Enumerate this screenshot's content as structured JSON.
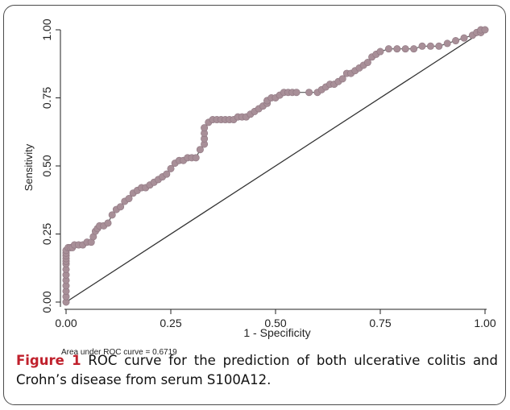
{
  "chart_data": {
    "type": "line",
    "xlabel": "1 - Specificity",
    "ylabel": "Sensitivity",
    "xlim": [
      0,
      1
    ],
    "ylim": [
      0,
      1
    ],
    "x_ticks": [
      "0.00",
      "0.25",
      "0.50",
      "0.75",
      "1.00"
    ],
    "y_ticks": [
      "0.00",
      "0.25",
      "0.50",
      "0.75",
      "1.00"
    ],
    "grid": false,
    "annotation": "Area under ROC curve = 0.6719",
    "series": [
      {
        "color": "#a88f98",
        "marker": "circle",
        "x": [
          0,
          0,
          0,
          0,
          0,
          0,
          0,
          0,
          0,
          0,
          0,
          0,
          0,
          0.005,
          0.01,
          0.015,
          0.02,
          0.03,
          0.04,
          0.05,
          0.06,
          0.065,
          0.07,
          0.075,
          0.08,
          0.09,
          0.1,
          0.11,
          0.12,
          0.13,
          0.14,
          0.15,
          0.16,
          0.17,
          0.18,
          0.19,
          0.2,
          0.21,
          0.22,
          0.23,
          0.24,
          0.25,
          0.26,
          0.27,
          0.28,
          0.29,
          0.3,
          0.31,
          0.32,
          0.33,
          0.33,
          0.33,
          0.33,
          0.34,
          0.35,
          0.36,
          0.37,
          0.38,
          0.39,
          0.4,
          0.41,
          0.42,
          0.43,
          0.44,
          0.45,
          0.46,
          0.47,
          0.48,
          0.48,
          0.48,
          0.49,
          0.5,
          0.51,
          0.52,
          0.53,
          0.54,
          0.55,
          0.58,
          0.6,
          0.61,
          0.62,
          0.63,
          0.64,
          0.65,
          0.66,
          0.67,
          0.68,
          0.69,
          0.7,
          0.71,
          0.72,
          0.73,
          0.74,
          0.75,
          0.77,
          0.79,
          0.81,
          0.83,
          0.85,
          0.87,
          0.89,
          0.91,
          0.93,
          0.95,
          0.97,
          0.98,
          0.99,
          0.99,
          0.99,
          1.0
        ],
        "y": [
          0,
          0.02,
          0.04,
          0.06,
          0.08,
          0.1,
          0.12,
          0.14,
          0.15,
          0.16,
          0.17,
          0.18,
          0.19,
          0.2,
          0.2,
          0.2,
          0.21,
          0.21,
          0.21,
          0.22,
          0.22,
          0.24,
          0.26,
          0.27,
          0.28,
          0.28,
          0.29,
          0.32,
          0.34,
          0.35,
          0.37,
          0.38,
          0.4,
          0.41,
          0.42,
          0.42,
          0.43,
          0.44,
          0.45,
          0.46,
          0.47,
          0.49,
          0.51,
          0.52,
          0.52,
          0.53,
          0.53,
          0.53,
          0.56,
          0.58,
          0.6,
          0.62,
          0.64,
          0.66,
          0.67,
          0.67,
          0.67,
          0.67,
          0.67,
          0.67,
          0.68,
          0.68,
          0.68,
          0.69,
          0.7,
          0.71,
          0.72,
          0.73,
          0.74,
          0.74,
          0.75,
          0.75,
          0.76,
          0.77,
          0.77,
          0.77,
          0.77,
          0.77,
          0.77,
          0.78,
          0.79,
          0.8,
          0.8,
          0.81,
          0.82,
          0.84,
          0.84,
          0.85,
          0.86,
          0.87,
          0.88,
          0.9,
          0.91,
          0.92,
          0.93,
          0.93,
          0.93,
          0.93,
          0.94,
          0.94,
          0.94,
          0.95,
          0.96,
          0.97,
          0.98,
          0.99,
          0.99,
          0.99,
          1.0,
          1.0
        ]
      }
    ],
    "reference_line": {
      "from": [
        0,
        0
      ],
      "to": [
        1,
        1
      ],
      "color": "#333333"
    }
  },
  "caption": {
    "label": "Figure 1",
    "text": " ROC curve for the prediction of both ulcerative colitis and Crohn’s disease from serum S100A12."
  }
}
